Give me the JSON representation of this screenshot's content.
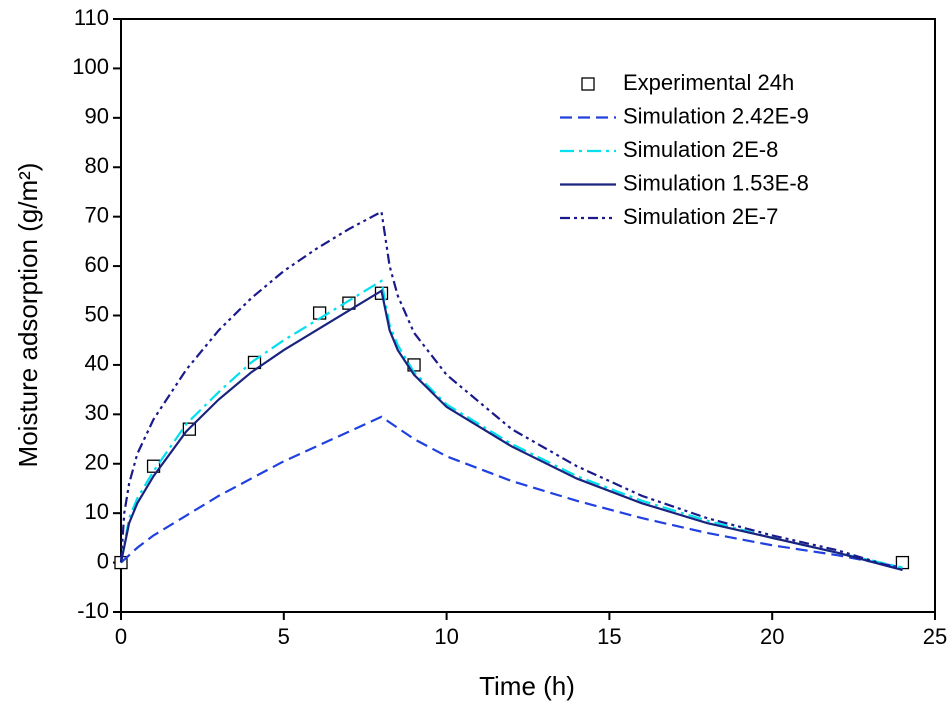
{
  "chart_data": {
    "type": "line",
    "x_label": "Time (h)",
    "y_label": "Moisture adsorption (g/m²)",
    "xlim": [
      0,
      25
    ],
    "ylim": [
      -10,
      110
    ],
    "xticks": [
      0,
      5,
      10,
      15,
      20,
      25
    ],
    "yticks": [
      -10,
      0,
      10,
      20,
      30,
      40,
      50,
      60,
      70,
      80,
      90,
      100,
      110
    ],
    "legend_position": "upper right",
    "series": [
      {
        "name": "Experimental 24h",
        "color": "#000000",
        "line_style": "none",
        "marker": "square",
        "x": [
          0,
          1,
          2.1,
          4.1,
          6.1,
          7,
          8,
          9,
          24
        ],
        "values": [
          0,
          19.5,
          27,
          40.5,
          50.5,
          52.5,
          54.5,
          40,
          0
        ]
      },
      {
        "name": "Simulation 2.42E-9",
        "color": "#2040e0",
        "line_style": "dashed",
        "marker": "none",
        "x": [
          0,
          0.5,
          1,
          2,
          3,
          4,
          5,
          6,
          7,
          8,
          9,
          10,
          12,
          14,
          16,
          18,
          20,
          22,
          24
        ],
        "values": [
          0,
          3,
          5.5,
          9.5,
          13.5,
          17,
          20.5,
          23.5,
          26.5,
          29.5,
          25,
          21.5,
          16.5,
          12.5,
          9,
          6,
          3.5,
          1.5,
          -1
        ]
      },
      {
        "name": "Simulation 2E-8",
        "color": "#00e0ee",
        "line_style": "dash-dot",
        "marker": "none",
        "x": [
          0,
          0.25,
          0.5,
          1,
          2,
          3,
          4,
          5,
          6,
          7,
          8,
          8.25,
          8.5,
          9,
          10,
          12,
          14,
          16,
          18,
          20,
          22,
          24
        ],
        "values": [
          0,
          9,
          13,
          18.5,
          28,
          34.5,
          40.5,
          45,
          49,
          53,
          57,
          48,
          44,
          38.5,
          32,
          24,
          17.5,
          12.5,
          8.5,
          5,
          2,
          -1
        ]
      },
      {
        "name": "Simulation 1.53E-8",
        "color": "#1a237e",
        "line_style": "solid",
        "marker": "none",
        "x": [
          0,
          0.25,
          0.5,
          1,
          2,
          3,
          4,
          5,
          6,
          7,
          8,
          8.25,
          8.5,
          9,
          10,
          12,
          14,
          16,
          18,
          20,
          22,
          24
        ],
        "values": [
          0,
          8,
          12,
          17.5,
          26.5,
          33,
          38.5,
          43,
          47,
          51,
          55,
          47,
          43,
          38,
          31.5,
          23.5,
          17,
          12,
          8,
          5,
          2,
          -1.5
        ]
      },
      {
        "name": "Simulation 2E-7",
        "color": "#1a1a8c",
        "line_style": "dash-dot-dot",
        "marker": "none",
        "x": [
          0,
          0.1,
          0.25,
          0.5,
          1,
          2,
          3,
          4,
          5,
          6,
          7,
          8,
          8.25,
          8.5,
          9,
          10,
          12,
          14,
          16,
          18,
          20,
          22,
          24
        ],
        "values": [
          0,
          10,
          16,
          22,
          29,
          39,
          47,
          53.5,
          59,
          63.5,
          67.5,
          71,
          60,
          54,
          46.5,
          38,
          27,
          19.5,
          13.5,
          9,
          5.5,
          2.5,
          -1.5
        ]
      }
    ]
  }
}
